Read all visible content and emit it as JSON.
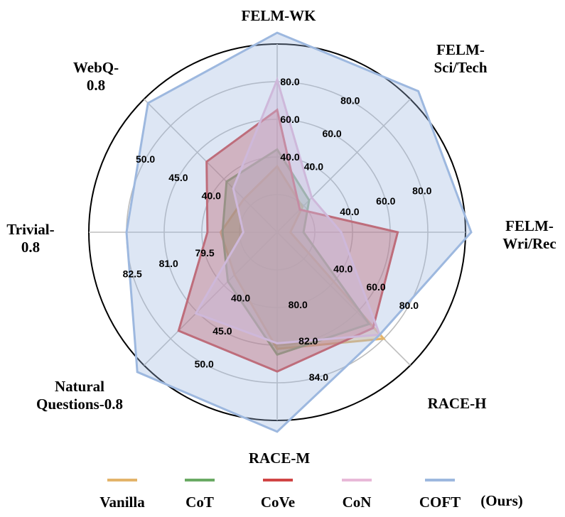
{
  "chart_data": {
    "type": "radar",
    "axes": [
      {
        "name": [
          "FELM-WK"
        ],
        "ticks": [
          "40.0",
          "60.0",
          "80.0"
        ]
      },
      {
        "name": [
          "FELM-",
          "Sci/Tech"
        ],
        "ticks": [
          "40.0",
          "60.0",
          "80.0"
        ]
      },
      {
        "name": [
          "FELM-",
          "Wri/Rec"
        ],
        "ticks": [
          "40.0",
          "60.0",
          "80.0"
        ]
      },
      {
        "name": [
          "RACE-H"
        ],
        "ticks": [
          "40.0",
          "60.0",
          "80.0"
        ]
      },
      {
        "name": [
          "RACE-M"
        ],
        "ticks": [
          "80.0",
          "82.0",
          "84.0"
        ]
      },
      {
        "name": [
          "Natural",
          "Questions-0.8"
        ],
        "ticks": [
          "40.0",
          "45.0",
          "50.0"
        ]
      },
      {
        "name": [
          "Trivial-",
          "0.8"
        ],
        "ticks": [
          "79.5",
          "81.0",
          "82.5"
        ]
      },
      {
        "name": [
          "WebQ-",
          "0.8"
        ],
        "ticks": [
          "40.0",
          "45.0",
          "50.0"
        ]
      }
    ],
    "grid": true,
    "series": [
      {
        "name": "Vanilla",
        "color": "#E3B46A",
        "radii": [
          0.35,
          0.19,
          0.07,
          0.8,
          0.62,
          0.32,
          0.3,
          0.25
        ]
      },
      {
        "name": "CoT",
        "color": "#6AAA64",
        "radii": [
          0.44,
          0.24,
          0.14,
          0.69,
          0.65,
          0.37,
          0.29,
          0.38
        ]
      },
      {
        "name": "CoVe",
        "color": "#D04545",
        "radii": [
          0.65,
          0.17,
          0.64,
          0.72,
          0.74,
          0.74,
          0.37,
          0.53
        ]
      },
      {
        "name": "CoN",
        "color": "#E8B9D8",
        "radii": [
          0.81,
          0.26,
          0.34,
          0.77,
          0.59,
          0.61,
          0.18,
          0.33
        ]
      },
      {
        "name": "COFT",
        "color": "#9DB8DF",
        "radii": [
          1.06,
          1.06,
          1.03,
          0.77,
          1.06,
          1.05,
          0.8,
          0.97
        ]
      }
    ],
    "legend": {
      "position": "bottom",
      "suffix": "(Ours)"
    }
  }
}
